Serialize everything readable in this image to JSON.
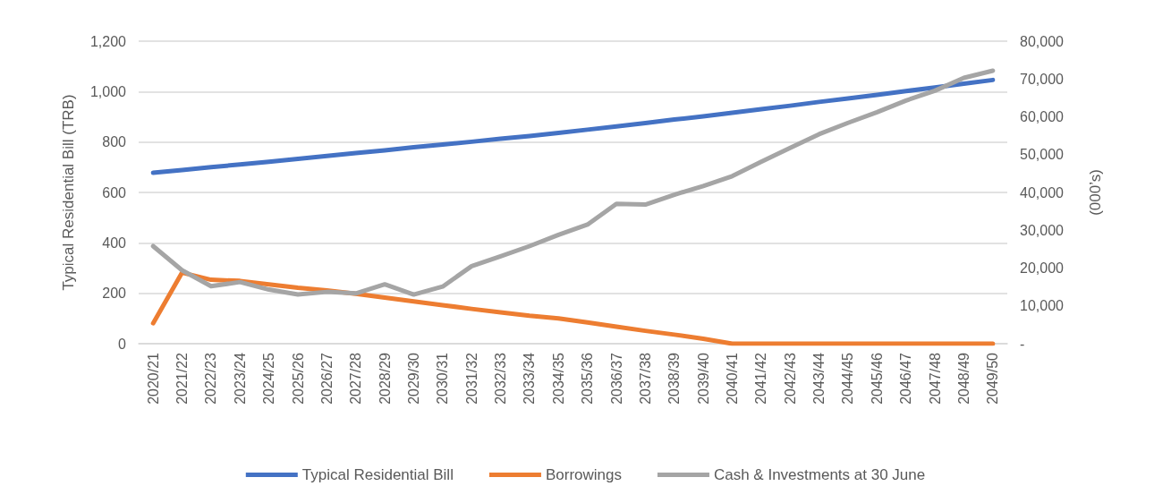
{
  "chart_data": {
    "type": "line",
    "ylabel": "Typical Residential Bill (TRB)",
    "y2label": "(000’s)",
    "categories": [
      "2020/21",
      "2021/22",
      "2022/23",
      "2023/24",
      "2024/25",
      "2025/26",
      "2026/27",
      "2027/28",
      "2028/29",
      "2029/30",
      "2030/31",
      "2031/32",
      "2032/33",
      "2033/34",
      "2034/35",
      "2035/36",
      "2036/37",
      "2037/38",
      "2038/39",
      "2039/40",
      "2040/41",
      "2041/42",
      "2042/43",
      "2043/44",
      "2044/45",
      "2045/46",
      "2046/47",
      "2047/48",
      "2048/49",
      "2049/50"
    ],
    "series": [
      {
        "name": "Typical Residential Bill",
        "color": "#4472c4",
        "values": [
          678,
          689,
          700,
          711,
          722,
          733,
          745,
          756,
          767,
          779,
          790,
          801,
          813,
          824,
          836,
          849,
          862,
          875,
          889,
          902,
          916,
          930,
          944,
          959,
          973,
          987,
          1002,
          1016,
          1031,
          1046
        ]
      },
      {
        "name": "Borrowings",
        "color": "#ed7d31",
        "axis": "y2",
        "values": [
          5400,
          18800,
          16900,
          16600,
          15700,
          14800,
          14100,
          13200,
          12200,
          11200,
          10200,
          9200,
          8300,
          7400,
          6700,
          5600,
          4500,
          3400,
          2400,
          1300,
          0,
          0,
          0,
          0,
          0,
          0,
          0,
          0,
          0,
          0
        ]
      },
      {
        "name": "Cash & Investments at 30 June",
        "color": "#a5a5a5",
        "axis": "y2",
        "values": [
          25800,
          19400,
          15200,
          16300,
          14300,
          13000,
          13700,
          13300,
          15700,
          13000,
          15100,
          20500,
          23100,
          25800,
          28800,
          31500,
          37000,
          36800,
          39400,
          41700,
          44300,
          48100,
          51800,
          55400,
          58400,
          61200,
          64300,
          66900,
          70300,
          72200
        ]
      }
    ],
    "ylim": [
      0,
      1200
    ],
    "yticks": [
      0,
      200,
      400,
      600,
      800,
      {
        "value": 1000,
        "label": "1,000"
      },
      {
        "value": 1200,
        "label": "1,200"
      }
    ],
    "y2lim": [
      0,
      80000
    ],
    "y2ticks": [
      {
        "value": 0,
        "label": "-"
      },
      {
        "value": 10000,
        "label": "10,000"
      },
      {
        "value": 20000,
        "label": "20,000"
      },
      {
        "value": 30000,
        "label": "30,000"
      },
      {
        "value": 40000,
        "label": "40,000"
      },
      {
        "value": 50000,
        "label": "50,000"
      },
      {
        "value": 60000,
        "label": "60,000"
      },
      {
        "value": 70000,
        "label": "70,000"
      },
      {
        "value": 80000,
        "label": "80,000"
      }
    ],
    "grid": "y",
    "legend": "bottom",
    "marker": "none",
    "line_style": "solid"
  }
}
